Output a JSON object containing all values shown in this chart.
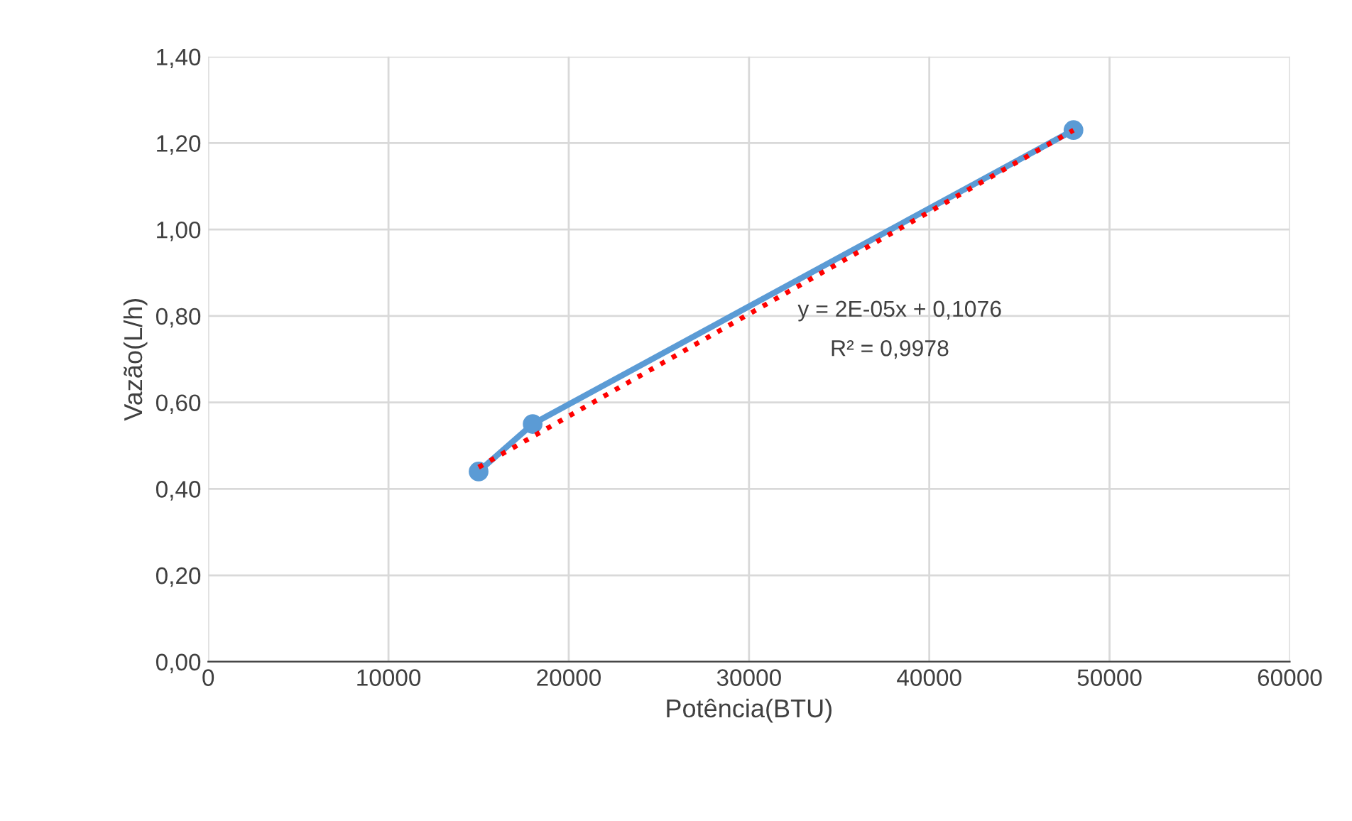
{
  "chart_data": {
    "type": "line",
    "xlabel": "Potência(BTU)",
    "ylabel": "Vazão(L/h)",
    "x": [
      15000,
      18000,
      48000
    ],
    "series": [
      {
        "color": "#5b9bd5",
        "values": [
          0.44,
          0.55,
          1.23
        ],
        "marker": "circle",
        "line_style": "solid"
      },
      {
        "color": "#ff0000",
        "x": [
          15000,
          48000
        ],
        "values": [
          0.45,
          1.23
        ],
        "marker": "none",
        "line_style": "dotted"
      }
    ],
    "annotations": [
      "y = 2E-05x + 0,1076",
      "R² = 0,9978"
    ],
    "xlim": [
      0,
      60000
    ],
    "xticks": [
      0,
      10000,
      20000,
      30000,
      40000,
      50000,
      60000
    ],
    "ylim": [
      0,
      1.4
    ],
    "yticks": [
      {
        "value": 0,
        "label": "0,00"
      },
      {
        "value": 0.2,
        "label": "0,20"
      },
      {
        "value": 0.4,
        "label": "0,40"
      },
      {
        "value": 0.6,
        "label": "0,60"
      },
      {
        "value": 0.8,
        "label": "0,80"
      },
      {
        "value": 1.0,
        "label": "1,00"
      },
      {
        "value": 1.2,
        "label": "1,20"
      },
      {
        "value": 1.4,
        "label": "1,40"
      }
    ],
    "grid": true,
    "legend": false
  }
}
